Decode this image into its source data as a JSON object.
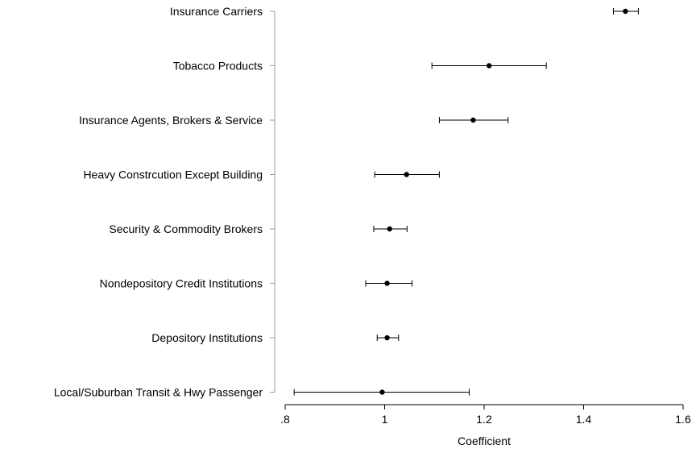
{
  "chart_data": {
    "type": "scatter",
    "subtype": "coefficient-plot",
    "title": "",
    "xlabel": "Coefficient",
    "ylabel": "",
    "xlim": [
      0.8,
      1.6
    ],
    "xticks": [
      0.8,
      1.0,
      1.2,
      1.4,
      1.6
    ],
    "xtick_labels": [
      ".8",
      "1",
      "1.2",
      "1.4",
      "1.6"
    ],
    "grid": false,
    "categories": [
      "Insurance Carriers",
      "Tobacco Products",
      "Insurance Agents, Brokers & Service",
      "Heavy Constrcution Except Building",
      "Security & Commodity Brokers",
      "Nondepository Credit Institutions",
      "Depository Institutions",
      "Local/Suburban Transit & Hwy Passenger"
    ],
    "series": [
      {
        "estimate": [
          1.484,
          1.21,
          1.178,
          1.044,
          1.01,
          1.005,
          1.005,
          0.995
        ],
        "lower": [
          1.46,
          1.095,
          1.11,
          0.98,
          0.978,
          0.962,
          0.985,
          0.818
        ],
        "upper": [
          1.51,
          1.325,
          1.248,
          1.11,
          1.045,
          1.055,
          1.028,
          1.17
        ]
      }
    ]
  }
}
